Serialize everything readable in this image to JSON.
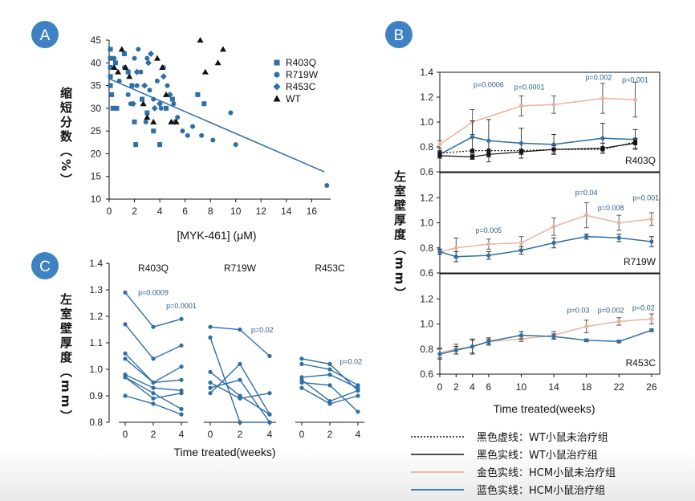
{
  "colors": {
    "hcm_treated": "#2f6ea6",
    "hcm_untreated": "#eab29c",
    "wt": "#111111",
    "badge": "#3f82c4"
  },
  "badges": [
    "A",
    "B",
    "C"
  ],
  "chart_data": [
    {
      "id": "A",
      "type": "scatter",
      "ylabel": "缩短分数（%）",
      "xlabel": "[MYK-461] (μM)",
      "xlim": [
        0,
        17.5
      ],
      "ylim": [
        10,
        45
      ],
      "xticks": [
        0,
        2,
        4,
        6,
        8,
        10,
        12,
        14,
        16
      ],
      "yticks": [
        10,
        15,
        20,
        25,
        30,
        35,
        40,
        45
      ],
      "legend": [
        {
          "label": "R403Q",
          "marker": "square"
        },
        {
          "label": "R719W",
          "marker": "circle"
        },
        {
          "label": "R453C",
          "marker": "diamond"
        },
        {
          "label": "WT",
          "marker": "triangle"
        }
      ],
      "fit_line": {
        "x": [
          0,
          17
        ],
        "y": [
          36.5,
          16
        ]
      },
      "series": [
        {
          "name": "R403Q",
          "marker": "square",
          "points": [
            [
              0.1,
              43
            ],
            [
              0.1,
              41
            ],
            [
              0.1,
              39
            ],
            [
              0.1,
              37
            ],
            [
              0.1,
              35
            ],
            [
              0.2,
              33
            ],
            [
              0.3,
              30
            ],
            [
              0.6,
              30
            ],
            [
              1.2,
              42
            ],
            [
              1.5,
              38
            ],
            [
              2.0,
              27
            ],
            [
              2.1,
              22
            ],
            [
              2.6,
              32
            ],
            [
              3.0,
              29
            ],
            [
              3.5,
              25
            ],
            [
              4.0,
              22
            ],
            [
              4.5,
              30
            ],
            [
              5.0,
              32
            ],
            [
              7.0,
              33
            ],
            [
              7.5,
              31
            ],
            [
              0.5,
              40
            ],
            [
              1.8,
              35
            ]
          ]
        },
        {
          "name": "R719W",
          "marker": "circle",
          "points": [
            [
              0.4,
              41
            ],
            [
              0.8,
              36
            ],
            [
              1.2,
              39
            ],
            [
              1.5,
              33
            ],
            [
              1.7,
              31
            ],
            [
              2.0,
              41
            ],
            [
              2.3,
              43
            ],
            [
              2.5,
              38
            ],
            [
              2.9,
              27
            ],
            [
              3.2,
              34
            ],
            [
              3.5,
              32
            ],
            [
              3.8,
              36
            ],
            [
              4.1,
              30
            ],
            [
              4.3,
              39
            ],
            [
              4.6,
              35
            ],
            [
              5.1,
              31
            ],
            [
              5.4,
              28
            ],
            [
              5.8,
              25
            ],
            [
              6.2,
              24
            ],
            [
              6.6,
              26
            ],
            [
              7.3,
              24
            ],
            [
              8.2,
              23
            ],
            [
              9.6,
              29
            ],
            [
              10.0,
              22
            ],
            [
              17.2,
              13
            ],
            [
              3.0,
              41
            ],
            [
              2.2,
              35
            ]
          ]
        },
        {
          "name": "R453C",
          "marker": "diamond",
          "points": [
            [
              2.2,
              38
            ],
            [
              2.8,
              35
            ],
            [
              3.1,
              40
            ],
            [
              3.3,
              42
            ],
            [
              3.6,
              30
            ],
            [
              4.0,
              31
            ],
            [
              4.3,
              37
            ],
            [
              4.8,
              33
            ],
            [
              5.2,
              27
            ],
            [
              1.9,
              31
            ]
          ]
        },
        {
          "name": "WT",
          "marker": "triangle",
          "points": [
            [
              0.4,
              39
            ],
            [
              0.7,
              38
            ],
            [
              1.0,
              43
            ],
            [
              1.3,
              39
            ],
            [
              1.6,
              37
            ],
            [
              2.7,
              31
            ],
            [
              3.0,
              28
            ],
            [
              3.5,
              27
            ],
            [
              3.8,
              41
            ],
            [
              4.2,
              39
            ],
            [
              4.5,
              33
            ],
            [
              4.9,
              27
            ],
            [
              5.3,
              27
            ],
            [
              7.2,
              45
            ],
            [
              7.6,
              38
            ],
            [
              8.6,
              40
            ],
            [
              9.0,
              43
            ]
          ]
        }
      ]
    },
    {
      "id": "B",
      "type": "line",
      "xlabel": "Time treated(weeks)",
      "ylabel": "左室壁厚度（mm）",
      "xticks": [
        0,
        2,
        4,
        6,
        10,
        14,
        18,
        22,
        26
      ],
      "panels": [
        {
          "name": "R403Q",
          "ylim": [
            0.6,
            1.4
          ],
          "yticks": [
            0.6,
            0.8,
            1.0,
            1.2,
            1.4
          ],
          "series": [
            {
              "name": "HCM untreated",
              "style": "gold",
              "x": [
                0,
                4,
                10,
                14,
                20,
                24
              ],
              "y": [
                0.82,
                1.0,
                1.13,
                1.14,
                1.19,
                1.18
              ],
              "err": [
                0.03,
                0.1,
                0.08,
                0.07,
                0.12,
                0.14
              ]
            },
            {
              "name": "HCM treated",
              "style": "blue",
              "x": [
                0,
                4,
                6,
                10,
                14,
                20,
                24
              ],
              "y": [
                0.74,
                0.88,
                0.85,
                0.83,
                0.82,
                0.87,
                0.86
              ],
              "err": [
                0.03,
                0.13,
                0.17,
                0.12,
                0.08,
                0.12,
                0.08
              ]
            },
            {
              "name": "WT untreated",
              "style": "wt-dash",
              "x": [
                0,
                4,
                6,
                10,
                14,
                20,
                24
              ],
              "y": [
                0.75,
                0.77,
                0.77,
                0.77,
                0.78,
                0.78,
                0.84
              ],
              "err": [
                0,
                0,
                0,
                0,
                0,
                0,
                0
              ]
            },
            {
              "name": "WT treated",
              "style": "wt-solid",
              "x": [
                0,
                4,
                6,
                10,
                14,
                20,
                24
              ],
              "y": [
                0.73,
                0.72,
                0.74,
                0.76,
                0.78,
                0.79,
                0.83
              ],
              "err": [
                0.02,
                0.02,
                0.02,
                0.02,
                0.03,
                0.04,
                0.04
              ]
            }
          ],
          "annotations": [
            {
              "x": 6,
              "y": 1.28,
              "text": "p=0.0006"
            },
            {
              "x": 11,
              "y": 1.26,
              "text": "p=0.0001"
            },
            {
              "x": 19.5,
              "y": 1.34,
              "text": "p=0.002"
            },
            {
              "x": 24,
              "y": 1.32,
              "text": "p=0.001"
            }
          ]
        },
        {
          "name": "R719W",
          "ylim": [
            0.6,
            1.4
          ],
          "yticks": [
            0.6,
            0.8,
            1.0,
            1.2,
            1.4
          ],
          "series": [
            {
              "name": "HCM untreated",
              "style": "gold",
              "x": [
                0,
                2,
                6,
                10,
                14,
                18,
                22,
                26
              ],
              "y": [
                0.77,
                0.8,
                0.83,
                0.84,
                0.97,
                1.06,
                1.0,
                1.03
              ],
              "err": [
                0.02,
                0.08,
                0.04,
                0.05,
                0.07,
                0.1,
                0.06,
                0.05
              ]
            },
            {
              "name": "HCM treated",
              "style": "blue",
              "x": [
                0,
                2,
                6,
                10,
                14,
                18,
                22,
                26
              ],
              "y": [
                0.77,
                0.73,
                0.74,
                0.78,
                0.84,
                0.89,
                0.88,
                0.85
              ],
              "err": [
                0.02,
                0.04,
                0.03,
                0.03,
                0.04,
                0.02,
                0.03,
                0.04
              ]
            }
          ],
          "annotations": [
            {
              "x": 6,
              "y": 0.92,
              "text": "p=0.005"
            },
            {
              "x": 18,
              "y": 1.22,
              "text": "p=0.04"
            },
            {
              "x": 21,
              "y": 1.1,
              "text": "p=0.008"
            },
            {
              "x": 25.3,
              "y": 1.18,
              "text": "p=0.001"
            }
          ]
        },
        {
          "name": "R453C",
          "ylim": [
            0.6,
            1.4
          ],
          "yticks": [
            0.6,
            0.8,
            1.0,
            1.2,
            1.4
          ],
          "series": [
            {
              "name": "HCM untreated",
              "style": "gold",
              "x": [
                0,
                2,
                4,
                6,
                10,
                14,
                18,
                22,
                26
              ],
              "y": [
                0.77,
                0.8,
                0.82,
                0.86,
                0.88,
                0.91,
                0.98,
                1.02,
                1.04
              ],
              "err": [
                0.04,
                0.04,
                0.05,
                0.03,
                0.02,
                0.03,
                0.05,
                0.03,
                0.04
              ]
            },
            {
              "name": "HCM treated",
              "style": "blue",
              "x": [
                0,
                2,
                4,
                6,
                10,
                14,
                18,
                22,
                26
              ],
              "y": [
                0.76,
                0.79,
                0.82,
                0.86,
                0.91,
                0.9,
                0.87,
                0.86,
                0.95
              ],
              "err": [
                0.04,
                0.03,
                0.06,
                0.02,
                0.03,
                0.02,
                0.01,
                0.01,
                0.01
              ]
            }
          ],
          "annotations": [
            {
              "x": 17,
              "y": 1.09,
              "text": "p=0.03"
            },
            {
              "x": 21,
              "y": 1.09,
              "text": "p=0.002"
            },
            {
              "x": 25,
              "y": 1.11,
              "text": "p=0.02"
            }
          ]
        }
      ]
    },
    {
      "id": "C",
      "type": "line",
      "xlabel": "Time treated(weeks)",
      "ylabel": "左室壁厚度（mm）",
      "ylim": [
        0.8,
        1.4
      ],
      "yticks": [
        0.8,
        0.9,
        1.0,
        1.1,
        1.2,
        1.3,
        1.4
      ],
      "panels": [
        {
          "name": "R403Q",
          "x": [
            0,
            2,
            4
          ],
          "lines": [
            [
              1.29,
              1.16,
              1.19
            ],
            [
              1.17,
              1.04,
              1.09
            ],
            [
              1.06,
              0.95,
              1.01
            ],
            [
              1.04,
              0.95,
              0.96
            ],
            [
              0.98,
              0.93,
              0.92
            ],
            [
              0.97,
              0.91,
              0.85
            ],
            [
              0.97,
              0.89,
              0.91
            ],
            [
              0.9,
              0.87,
              0.83
            ]
          ],
          "annotations": [
            {
              "x": 2,
              "y": 1.28,
              "text": "p=0.0009"
            },
            {
              "x": 4,
              "y": 1.23,
              "text": "p=0.0001"
            }
          ]
        },
        {
          "name": "R719W",
          "x": [
            0,
            2,
            4
          ],
          "lines": [
            [
              1.16,
              1.15,
              1.05
            ],
            [
              1.12,
              0.8,
              0.8
            ],
            [
              0.99,
              0.9,
              0.83
            ],
            [
              0.95,
              0.89,
              0.91
            ],
            [
              0.93,
              0.96,
              0.8
            ],
            [
              0.91,
              1.02,
              0.83
            ]
          ],
          "annotations": [
            {
              "x": 3.5,
              "y": 1.14,
              "text": "p=0.02"
            }
          ]
        },
        {
          "name": "R453C",
          "x": [
            0,
            2,
            4
          ],
          "lines": [
            [
              1.04,
              1.02,
              0.92
            ],
            [
              1.02,
              1.0,
              0.94
            ],
            [
              0.97,
              0.98,
              0.93
            ],
            [
              0.96,
              0.88,
              0.92
            ],
            [
              0.95,
              0.94,
              0.84
            ],
            [
              0.93,
              0.87,
              0.9
            ]
          ],
          "annotations": [
            {
              "x": 3.5,
              "y": 1.02,
              "text": "p=0.02"
            }
          ]
        }
      ]
    }
  ],
  "legend_bottom": [
    {
      "style": "wt-dash",
      "text": "黑色虚线：WT小鼠未治疗组"
    },
    {
      "style": "wt-solid",
      "text": "黑色实线：WT小鼠治疗组"
    },
    {
      "style": "gold",
      "text": "金色实线：HCM小鼠未治疗组"
    },
    {
      "style": "blue",
      "text": "蓝色实线：HCM小鼠治疗组"
    }
  ]
}
